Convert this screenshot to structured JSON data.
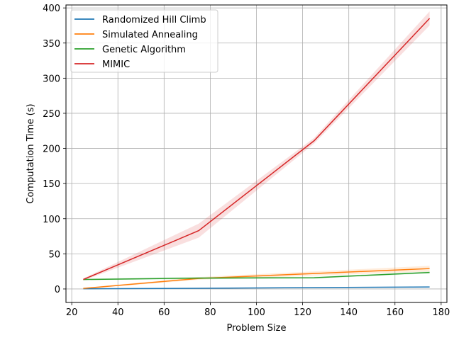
{
  "chart_data": {
    "type": "line",
    "title": "",
    "xlabel": "Problem Size",
    "ylabel": "Computation Time (s)",
    "xlim": [
      17.5,
      182.5
    ],
    "ylim": [
      -19.2,
      404.2
    ],
    "xticks": [
      20,
      40,
      60,
      80,
      100,
      120,
      140,
      160,
      180
    ],
    "yticks": [
      0,
      50,
      100,
      150,
      200,
      250,
      300,
      350,
      400
    ],
    "grid": true,
    "legend_position": "top-left",
    "x": [
      25,
      75,
      125,
      175
    ],
    "series": [
      {
        "name": "Randomized Hill Climb",
        "color": "#1f77b4",
        "values": [
          0.3,
          1.0,
          2.0,
          2.8
        ],
        "band": [
          0.4,
          0.4,
          0.5,
          0.6
        ]
      },
      {
        "name": "Simulated Annealing",
        "color": "#ff7f0e",
        "values": [
          0.8,
          15.0,
          22.0,
          29.0
        ],
        "band": [
          0.8,
          2.0,
          3.0,
          4.0
        ]
      },
      {
        "name": "Genetic Algorithm",
        "color": "#2ca02c",
        "values": [
          13.5,
          15.5,
          16.0,
          23.5
        ],
        "band": [
          1.0,
          1.5,
          1.2,
          1.5
        ]
      },
      {
        "name": "MIMIC",
        "color": "#d62728",
        "values": [
          13.5,
          83.0,
          211.0,
          385.0
        ],
        "band": [
          1.5,
          10.0,
          4.0,
          10.0
        ]
      }
    ]
  }
}
